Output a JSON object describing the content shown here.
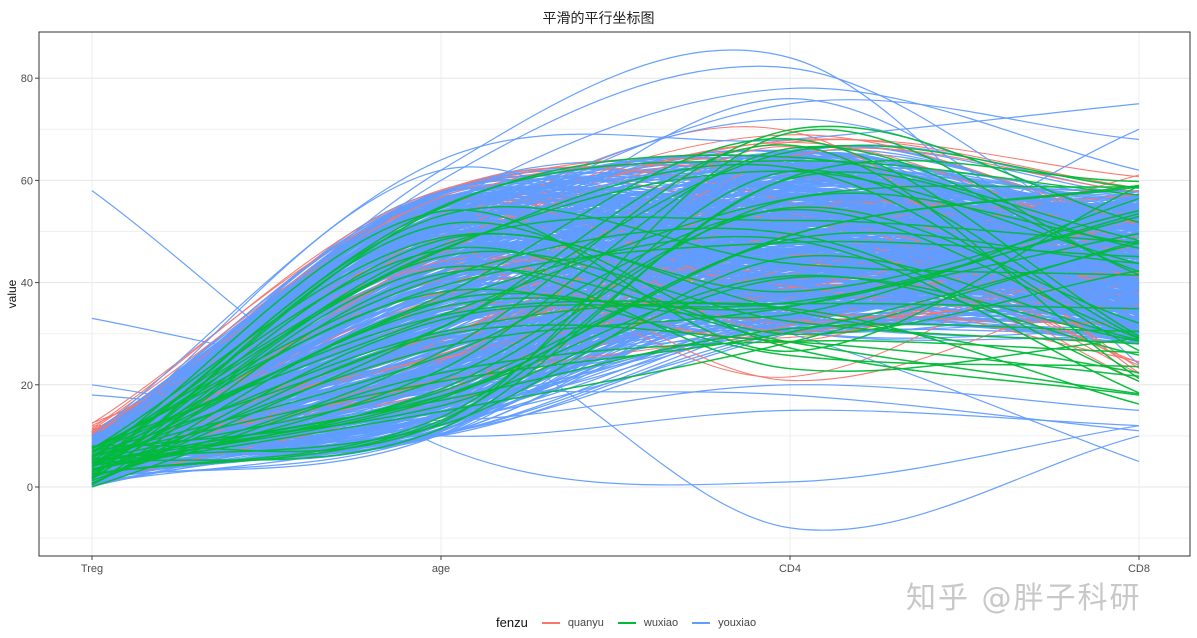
{
  "title": "平滑的平行坐标图",
  "watermark": "知乎 @胖子科研",
  "colors": {
    "quanyu": "#F8766D",
    "wuxiao": "#00BA38",
    "youxiao": "#619CFF"
  },
  "legend": {
    "title": "fenzu",
    "items": [
      {
        "label": "quanyu",
        "color": "#F8766D"
      },
      {
        "label": "wuxiao",
        "color": "#00BA38"
      },
      {
        "label": "youxiao",
        "color": "#619CFF"
      }
    ]
  },
  "chart_data": {
    "type": "line",
    "subtype": "smoothed parallel coordinates",
    "title": "平滑的平行坐标图",
    "xlabel": "",
    "ylabel": "value",
    "categories": [
      "Treg",
      "age",
      "CD4",
      "CD8"
    ],
    "yticks": [
      0,
      20,
      40,
      60,
      80
    ],
    "ylim": [
      -13,
      89
    ],
    "grid": true,
    "legend_position": "bottom",
    "groups": [
      "quanyu",
      "wuxiao",
      "youxiao"
    ],
    "series_summary": [
      {
        "name": "youxiao",
        "Treg_range": [
          0,
          58
        ],
        "age_range": [
          8,
          62
        ],
        "CD4_range": [
          1,
          84
        ],
        "CD8_range": [
          5,
          75
        ],
        "note": "majority of lines, dense band"
      },
      {
        "name": "wuxiao",
        "Treg_range": [
          0,
          10
        ],
        "age_range": [
          10,
          58
        ],
        "CD4_range": [
          20,
          72
        ],
        "CD8_range": [
          15,
          62
        ]
      },
      {
        "name": "quanyu",
        "Treg_range": [
          0,
          14
        ],
        "age_range": [
          12,
          62
        ],
        "CD4_range": [
          18,
          73
        ],
        "CD8_range": [
          18,
          63
        ]
      }
    ]
  },
  "axes": {
    "x_labels": [
      "Treg",
      "age",
      "CD4",
      "CD8"
    ],
    "y_labels": [
      "0",
      "20",
      "40",
      "60",
      "80"
    ],
    "y_title": "value"
  }
}
